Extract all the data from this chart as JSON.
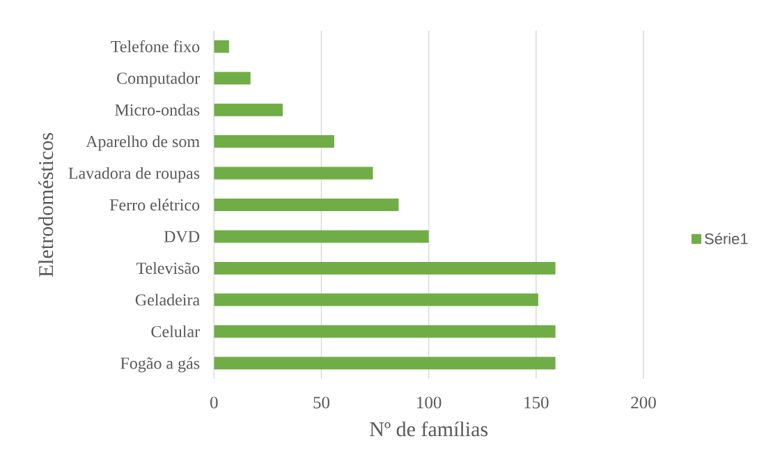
{
  "chart_data": {
    "type": "bar",
    "orientation": "horizontal",
    "xlabel": "Nº de famílias",
    "ylabel": "Eletrodomésticos",
    "categories": [
      "Telefone fixo",
      "Computador",
      "Micro-ondas",
      "Aparelho de som",
      "Lavadora de roupas",
      "Ferro elétrico",
      "DVD",
      "Televisão",
      "Geladeira",
      "Celular",
      "Fogão a gás"
    ],
    "series": [
      {
        "name": "Série1",
        "color": "#70ad47",
        "values": [
          7,
          17,
          32,
          56,
          74,
          86,
          100,
          159,
          151,
          159,
          159
        ]
      }
    ],
    "xlim": [
      0,
      200
    ],
    "xticks": [
      0,
      50,
      100,
      150,
      200
    ],
    "grid": "x",
    "legend": "right"
  }
}
